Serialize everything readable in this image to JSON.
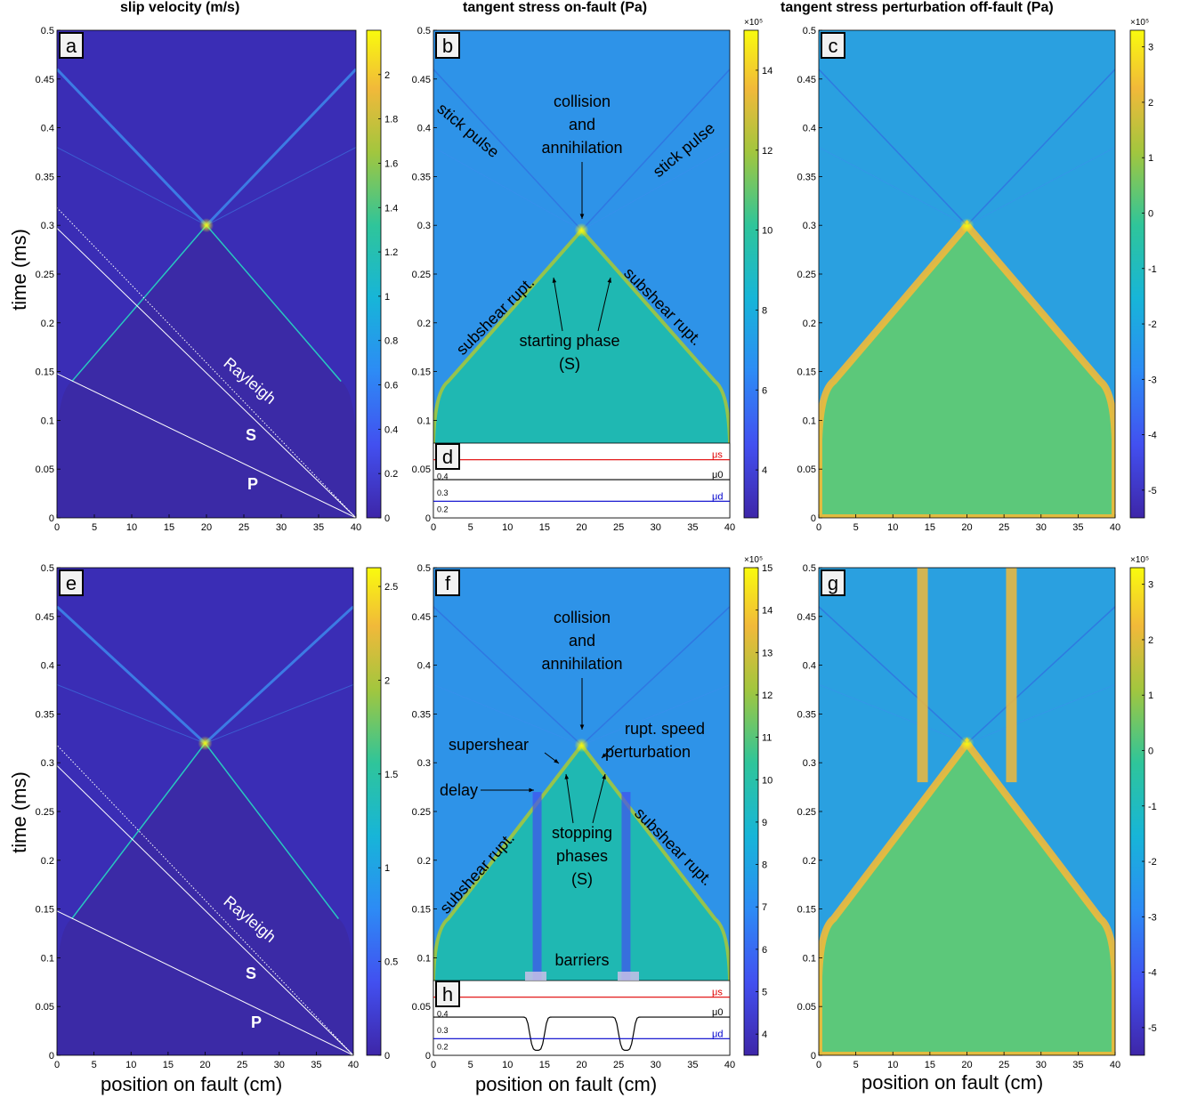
{
  "figure": {
    "column_titles": [
      "slip velocity (m/s)",
      "tangent stress on-fault (Pa)",
      "tangent stress perturbation off-fault (Pa)"
    ],
    "y_axis_label": "time (ms)",
    "x_axis_label": "position on fault (cm)",
    "colors": {
      "parula_low": "#3e26a8",
      "parula_mid": "#2fb8aa",
      "parula_high": "#f9fb0e",
      "annotation_white": "#ffffff",
      "mu_s_color": "#e00000",
      "mu_0_color": "#000000",
      "mu_d_color": "#0000cc"
    }
  },
  "chart_data": [
    {
      "panel": "a",
      "type": "heatmap",
      "field": "slip velocity",
      "xlim": [
        0,
        40
      ],
      "ylim": [
        0,
        0.5
      ],
      "xticks": [
        "0",
        "5",
        "10",
        "15",
        "20",
        "25",
        "30",
        "35",
        "40"
      ],
      "yticks": [
        "0",
        "0.05",
        "0.1",
        "0.15",
        "0.2",
        "0.25",
        "0.3",
        "0.35",
        "0.4",
        "0.45",
        "0.5"
      ],
      "colorbar": {
        "min": 0,
        "max": 2.2,
        "ticks": [
          "0",
          "0.2",
          "0.4",
          "0.6",
          "0.8",
          "1",
          "1.2",
          "1.4",
          "1.6",
          "1.8",
          "2"
        ],
        "exponent": ""
      },
      "features": {
        "nucleation_cm": 20,
        "collision_ms": 0.3,
        "front_start_ms": 0.13
      },
      "reference_lines": [
        {
          "name": "P",
          "from": [
            40,
            0
          ],
          "to": [
            0,
            0.148
          ]
        },
        {
          "name": "S",
          "from": [
            40,
            0
          ],
          "to": [
            0,
            0.297
          ]
        },
        {
          "name": "Rayleigh",
          "from": [
            40,
            0
          ],
          "to": [
            0,
            0.318
          ],
          "style": "dotted"
        }
      ],
      "annotations": [
        "Rayleigh",
        "S",
        "P"
      ]
    },
    {
      "panel": "b",
      "type": "heatmap",
      "field": "tangent stress on-fault",
      "xlim": [
        0,
        40
      ],
      "ylim": [
        0,
        0.5
      ],
      "xticks": [
        "0",
        "5",
        "10",
        "15",
        "20",
        "25",
        "30",
        "35",
        "40"
      ],
      "yticks": [
        "0",
        "0.05",
        "0.1",
        "0.15",
        "0.2",
        "0.25",
        "0.3",
        "0.35",
        "0.4",
        "0.45",
        "0.5"
      ],
      "colorbar": {
        "min": 2.8,
        "max": 15,
        "ticks": [
          "4",
          "6",
          "8",
          "10",
          "12",
          "14"
        ],
        "exponent": "×10⁵"
      },
      "features": {
        "nucleation_cm": 20,
        "collision_ms": 0.295
      },
      "annotations": [
        "stick pulse",
        "stick pulse",
        "collision",
        "and",
        "annihilation",
        "subshear rupt.",
        "subshear rupt.",
        "starting phase",
        "(S)"
      ]
    },
    {
      "panel": "c",
      "type": "heatmap",
      "field": "tangent stress perturbation off-fault",
      "xlim": [
        0,
        40
      ],
      "ylim": [
        0,
        0.5
      ],
      "xticks": [
        "0",
        "5",
        "10",
        "15",
        "20",
        "25",
        "30",
        "35",
        "40"
      ],
      "yticks": [
        "0",
        "0.05",
        "0.1",
        "0.15",
        "0.2",
        "0.25",
        "0.3",
        "0.35",
        "0.4",
        "0.45",
        "0.5"
      ],
      "colorbar": {
        "min": -5.5,
        "max": 3.3,
        "ticks": [
          "-5",
          "-4",
          "-3",
          "-2",
          "-1",
          "0",
          "1",
          "2",
          "3"
        ],
        "exponent": "×10⁵"
      },
      "features": {
        "nucleation_cm": 20,
        "collision_ms": 0.3
      }
    },
    {
      "panel": "d",
      "type": "line",
      "field": "friction coefficients",
      "xlim": [
        0,
        40
      ],
      "ylim": [
        0.15,
        0.6
      ],
      "yticks": [
        "0.2",
        "0.3",
        "0.4",
        "0.5"
      ],
      "series": [
        {
          "name": "μs",
          "y": 0.5
        },
        {
          "name": "μ0",
          "y": 0.38
        },
        {
          "name": "μd",
          "y": 0.25
        }
      ]
    },
    {
      "panel": "e",
      "type": "heatmap",
      "field": "slip velocity",
      "xlim": [
        0,
        40
      ],
      "ylim": [
        0,
        0.5
      ],
      "xticks": [
        "0",
        "5",
        "10",
        "15",
        "20",
        "25",
        "30",
        "35",
        "40"
      ],
      "yticks": [
        "0",
        "0.05",
        "0.1",
        "0.15",
        "0.2",
        "0.25",
        "0.3",
        "0.35",
        "0.4",
        "0.45",
        "0.5"
      ],
      "colorbar": {
        "min": 0,
        "max": 2.6,
        "ticks": [
          "0",
          "0.5",
          "1",
          "1.5",
          "2",
          "2.5"
        ],
        "exponent": ""
      },
      "features": {
        "nucleation_cm": 20,
        "collision_ms": 0.32,
        "barriers_cm": [
          14,
          26
        ]
      },
      "reference_lines": [
        {
          "name": "P",
          "from": [
            40,
            0
          ],
          "to": [
            0,
            0.148
          ]
        },
        {
          "name": "S",
          "from": [
            40,
            0
          ],
          "to": [
            0,
            0.297
          ]
        },
        {
          "name": "Rayleigh",
          "from": [
            40,
            0
          ],
          "to": [
            0,
            0.318
          ],
          "style": "dotted"
        }
      ],
      "annotations": [
        "Rayleigh",
        "S",
        "P"
      ]
    },
    {
      "panel": "f",
      "type": "heatmap",
      "field": "tangent stress on-fault",
      "xlim": [
        0,
        40
      ],
      "ylim": [
        0,
        0.5
      ],
      "xticks": [
        "0",
        "5",
        "10",
        "15",
        "20",
        "25",
        "30",
        "35",
        "40"
      ],
      "yticks": [
        "0",
        "0.05",
        "0.1",
        "0.15",
        "0.2",
        "0.25",
        "0.3",
        "0.35",
        "0.4",
        "0.45",
        "0.5"
      ],
      "colorbar": {
        "min": 3.5,
        "max": 15,
        "ticks": [
          "4",
          "5",
          "6",
          "7",
          "8",
          "9",
          "10",
          "11",
          "12",
          "13",
          "14",
          "15"
        ],
        "exponent": "×10⁵"
      },
      "features": {
        "nucleation_cm": 20,
        "collision_ms": 0.318,
        "barriers_cm": [
          14,
          26
        ]
      },
      "annotations": [
        "collision",
        "and",
        "annihilation",
        "supershear",
        "rupt. speed",
        "perturbation",
        "delay",
        "subshear rupt.",
        "subshear rupt.",
        "stopping",
        "phases",
        "(S)",
        "barriers"
      ]
    },
    {
      "panel": "g",
      "type": "heatmap",
      "field": "tangent stress perturbation off-fault",
      "xlim": [
        0,
        40
      ],
      "ylim": [
        0,
        0.5
      ],
      "xticks": [
        "0",
        "5",
        "10",
        "15",
        "20",
        "25",
        "30",
        "35",
        "40"
      ],
      "yticks": [
        "0",
        "0.05",
        "0.1",
        "0.15",
        "0.2",
        "0.25",
        "0.3",
        "0.35",
        "0.4",
        "0.45",
        "0.5"
      ],
      "colorbar": {
        "min": -5.5,
        "max": 3.3,
        "ticks": [
          "-5",
          "-4",
          "-3",
          "-2",
          "-1",
          "0",
          "1",
          "2",
          "3"
        ],
        "exponent": "×10⁵"
      },
      "features": {
        "nucleation_cm": 20,
        "collision_ms": 0.32,
        "barriers_cm": [
          14,
          26
        ]
      }
    },
    {
      "panel": "h",
      "type": "line",
      "field": "friction coefficients",
      "xlim": [
        0,
        40
      ],
      "ylim": [
        0.15,
        0.6
      ],
      "yticks": [
        "0.2",
        "0.3",
        "0.4",
        "0.5"
      ],
      "series": [
        {
          "name": "μs",
          "y": 0.5
        },
        {
          "name": "μ0",
          "y": 0.38,
          "dips": [
            {
              "x": 14,
              "y": 0.18
            },
            {
              "x": 26,
              "y": 0.18
            }
          ]
        },
        {
          "name": "μd",
          "y": 0.25
        }
      ]
    }
  ]
}
